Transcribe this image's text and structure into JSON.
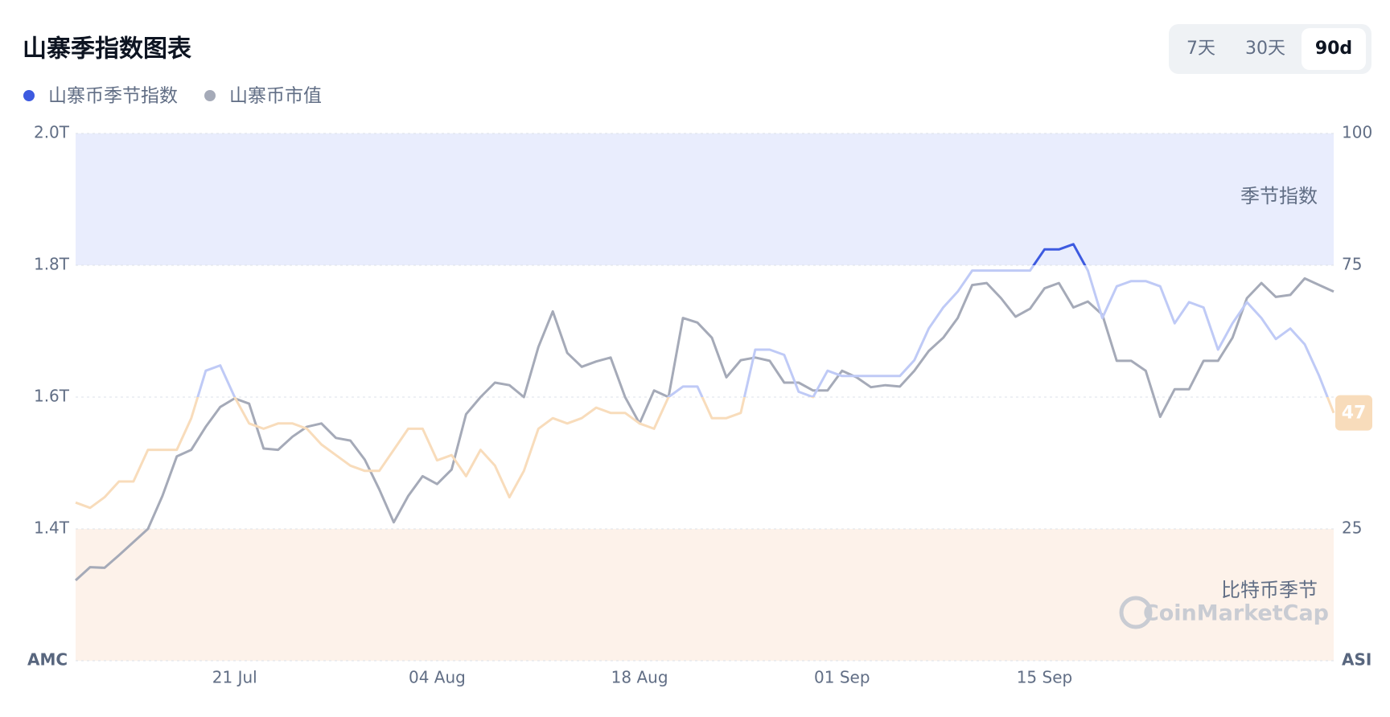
{
  "chart_data": {
    "type": "line",
    "title": "山寨季指数图表",
    "tabs": [
      "7天",
      "30天",
      "90d"
    ],
    "active_tab": 2,
    "ylabel": "AMC",
    "y2label": "ASI",
    "watermark": "CoinMarketCap",
    "categories": [
      null,
      null,
      null,
      null,
      null,
      null,
      null,
      null,
      null,
      null,
      null,
      "21 Jul",
      null,
      null,
      null,
      null,
      null,
      null,
      null,
      null,
      null,
      null,
      null,
      null,
      null,
      "04 Aug",
      null,
      null,
      null,
      null,
      null,
      null,
      null,
      null,
      null,
      null,
      null,
      null,
      null,
      "18 Aug",
      null,
      null,
      null,
      null,
      null,
      null,
      null,
      null,
      null,
      null,
      null,
      null,
      null,
      "01 Sep",
      null,
      null,
      null,
      null,
      null,
      null,
      null,
      null,
      null,
      null,
      null,
      null,
      null,
      "15 Sep",
      null,
      null,
      null,
      null,
      null,
      null,
      null,
      null,
      null,
      null,
      null,
      null,
      null,
      null,
      null,
      null,
      null,
      null,
      null,
      null
    ],
    "ylim": [
      1.2,
      2.0
    ],
    "yticks": [
      {
        "value": 1.4,
        "label": "1.4T"
      },
      {
        "value": 1.6,
        "label": "1.6T"
      },
      {
        "value": 1.8,
        "label": "1.8T"
      },
      {
        "value": 2.0,
        "label": "2.0T"
      }
    ],
    "y2lim": [
      0,
      100
    ],
    "y2ticks": [
      25,
      75,
      100
    ],
    "grid": true,
    "bands": [
      {
        "label": "季节指数",
        "from": 75,
        "to": 100,
        "color": "#e9edfd"
      },
      {
        "label": "比特币季节",
        "from": 0,
        "to": 25,
        "color": "#fdf2ea"
      }
    ],
    "zones": [
      {
        "from": 75,
        "to": 100,
        "color": "#3d5ae0"
      },
      {
        "from": 50,
        "to": 75,
        "color": "#bfcaf6"
      },
      {
        "from": 0,
        "to": 50,
        "color": "#f8dcbb"
      }
    ],
    "series": [
      {
        "name": "山寨币季节指数",
        "color": "#3d5ae0",
        "axis": "y2",
        "values": [
          30,
          29,
          31,
          34,
          34,
          40,
          40,
          40,
          46,
          55,
          56,
          50,
          45,
          44,
          45,
          45,
          44,
          41,
          39,
          37,
          36,
          36,
          40,
          44,
          44,
          38,
          39,
          35,
          40,
          37,
          31,
          36,
          44,
          46,
          45,
          46,
          48,
          47,
          47,
          45,
          44,
          50,
          52,
          52,
          46,
          46,
          47,
          59,
          59,
          58,
          51,
          50,
          55,
          54,
          54,
          54,
          54,
          54,
          57,
          63,
          67,
          70,
          74,
          74,
          74,
          74,
          74,
          78,
          78,
          79,
          74,
          65,
          71,
          72,
          72,
          71,
          64,
          68,
          67,
          59,
          64,
          68,
          65,
          61,
          63,
          60,
          54,
          47
        ]
      },
      {
        "name": "山寨币市值",
        "color": "#a5aab8",
        "values": [
          1.322,
          1.342,
          1.341,
          1.36,
          1.38,
          1.4,
          1.45,
          1.51,
          1.52,
          1.555,
          1.585,
          1.598,
          1.59,
          1.522,
          1.52,
          1.54,
          1.555,
          1.56,
          1.538,
          1.534,
          1.505,
          1.46,
          1.41,
          1.45,
          1.48,
          1.468,
          1.49,
          1.574,
          1.6,
          1.622,
          1.618,
          1.6,
          1.676,
          1.73,
          1.667,
          1.646,
          1.654,
          1.66,
          1.6,
          1.56,
          1.61,
          1.6,
          1.72,
          1.713,
          1.69,
          1.63,
          1.656,
          1.66,
          1.655,
          1.622,
          1.622,
          1.61,
          1.61,
          1.64,
          1.63,
          1.615,
          1.618,
          1.616,
          1.64,
          1.67,
          1.69,
          1.72,
          1.77,
          1.773,
          1.75,
          1.722,
          1.734,
          1.765,
          1.773,
          1.736,
          1.745,
          1.725,
          1.655,
          1.655,
          1.64,
          1.57,
          1.612,
          1.612,
          1.655,
          1.655,
          1.69,
          1.75,
          1.773,
          1.752,
          1.755,
          1.78,
          1.77,
          1.76
        ]
      }
    ]
  }
}
